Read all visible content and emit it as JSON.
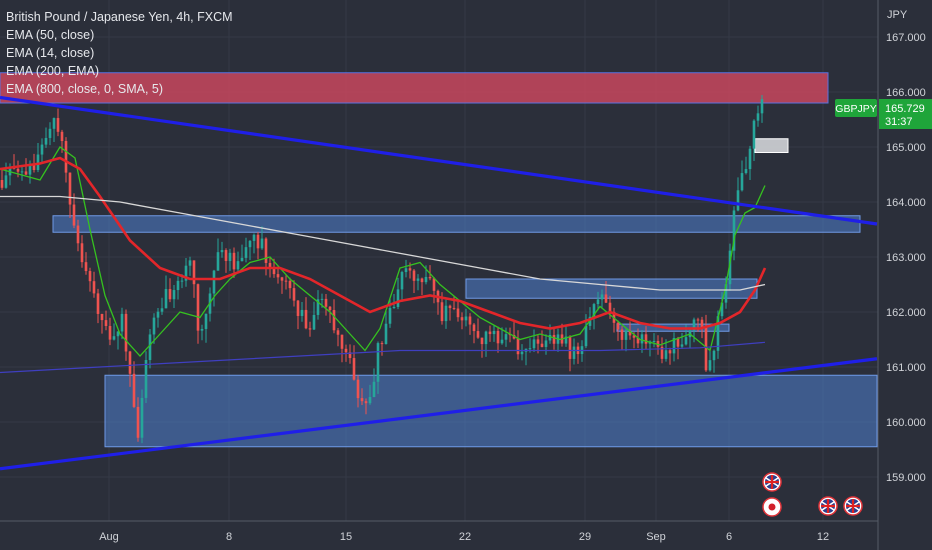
{
  "legend": {
    "title": "British Pound / Japanese Yen, 4h, FXCM",
    "indicators": [
      "EMA (50, close)",
      "EMA (14, close)",
      "EMA (200, EMA)",
      "EMA (800, close, 0, SMA, 5)"
    ]
  },
  "axis": {
    "currency": "JPY",
    "price_ticks": [
      "167.000",
      "166.000",
      "165.000",
      "164.000",
      "163.000",
      "162.000",
      "161.000",
      "160.000",
      "159.000"
    ],
    "date_ticks": [
      "Aug",
      "8",
      "15",
      "22",
      "29",
      "Sep",
      "6",
      "12"
    ]
  },
  "price_label": {
    "symbol": "GBPJPY",
    "price": "165.729",
    "countdown": "31:37"
  },
  "colors": {
    "background": "#2b2f3a",
    "up": "#26a69a",
    "down": "#ef5350",
    "ema14": "#35c21f",
    "ema50": "#e3262a",
    "ema200": "#d8d8d8",
    "ema800": "#3f3fc0",
    "trendline": "#1f1fe8",
    "zone": "#4f7fd0",
    "resistance": "#c8475e"
  },
  "chart_data": {
    "type": "candlestick",
    "symbol": "GBPJPY",
    "timeframe": "4h",
    "ylim": [
      158.6,
      167.3
    ],
    "series": [
      {
        "name": "EMA (14, close)",
        "points": [
          [
            0,
            164.6
          ],
          [
            40,
            164.4
          ],
          [
            60,
            165.0
          ],
          [
            75,
            164.8
          ],
          [
            90,
            163.5
          ],
          [
            105,
            162.3
          ],
          [
            120,
            161.6
          ],
          [
            140,
            161.2
          ],
          [
            160,
            161.6
          ],
          [
            180,
            162.0
          ],
          [
            200,
            161.9
          ],
          [
            215,
            162.3
          ],
          [
            230,
            162.6
          ],
          [
            250,
            162.9
          ],
          [
            270,
            163.0
          ],
          [
            290,
            162.6
          ],
          [
            310,
            162.3
          ],
          [
            330,
            162.0
          ],
          [
            350,
            161.6
          ],
          [
            365,
            161.3
          ],
          [
            380,
            161.7
          ],
          [
            400,
            162.8
          ],
          [
            420,
            162.9
          ],
          [
            440,
            162.5
          ],
          [
            460,
            162.2
          ],
          [
            480,
            161.9
          ],
          [
            500,
            161.7
          ],
          [
            520,
            161.5
          ],
          [
            540,
            161.6
          ],
          [
            560,
            161.5
          ],
          [
            580,
            161.6
          ],
          [
            600,
            162.1
          ],
          [
            620,
            161.8
          ],
          [
            640,
            161.5
          ],
          [
            660,
            161.4
          ],
          [
            690,
            161.6
          ],
          [
            710,
            161.3
          ],
          [
            725,
            162.4
          ],
          [
            735,
            163.4
          ],
          [
            745,
            163.8
          ],
          [
            755,
            163.9
          ],
          [
            765,
            164.3
          ]
        ]
      },
      {
        "name": "EMA (50, close)",
        "points": [
          [
            0,
            164.6
          ],
          [
            40,
            164.7
          ],
          [
            60,
            164.8
          ],
          [
            80,
            164.6
          ],
          [
            100,
            164.1
          ],
          [
            130,
            163.3
          ],
          [
            160,
            162.8
          ],
          [
            190,
            162.6
          ],
          [
            220,
            162.6
          ],
          [
            250,
            162.8
          ],
          [
            280,
            162.8
          ],
          [
            310,
            162.6
          ],
          [
            340,
            162.3
          ],
          [
            370,
            162.0
          ],
          [
            400,
            162.2
          ],
          [
            430,
            162.3
          ],
          [
            460,
            162.2
          ],
          [
            490,
            162.0
          ],
          [
            520,
            161.8
          ],
          [
            550,
            161.7
          ],
          [
            580,
            161.8
          ],
          [
            610,
            162.0
          ],
          [
            640,
            161.8
          ],
          [
            670,
            161.7
          ],
          [
            700,
            161.7
          ],
          [
            720,
            161.8
          ],
          [
            740,
            162.0
          ],
          [
            755,
            162.4
          ],
          [
            765,
            162.8
          ]
        ]
      },
      {
        "name": "EMA (200, EMA)",
        "points": [
          [
            0,
            164.1
          ],
          [
            60,
            164.1
          ],
          [
            120,
            164.0
          ],
          [
            180,
            163.8
          ],
          [
            240,
            163.6
          ],
          [
            300,
            163.4
          ],
          [
            360,
            163.2
          ],
          [
            420,
            163.0
          ],
          [
            480,
            162.8
          ],
          [
            540,
            162.6
          ],
          [
            600,
            162.5
          ],
          [
            660,
            162.4
          ],
          [
            700,
            162.4
          ],
          [
            740,
            162.4
          ],
          [
            765,
            162.5
          ]
        ]
      },
      {
        "name": "EMA (800, close, 0, SMA, 5)",
        "points": [
          [
            0,
            160.9
          ],
          [
            100,
            161.0
          ],
          [
            200,
            161.1
          ],
          [
            300,
            161.2
          ],
          [
            400,
            161.3
          ],
          [
            500,
            161.3
          ],
          [
            600,
            161.3
          ],
          [
            700,
            161.35
          ],
          [
            765,
            161.45
          ]
        ]
      }
    ],
    "trendlines": [
      {
        "from": [
          0,
          165.9
        ],
        "to": [
          877,
          163.6
        ]
      },
      {
        "from": [
          0,
          159.15
        ],
        "to": [
          877,
          161.15
        ]
      }
    ],
    "zones": [
      {
        "x0": 0,
        "x1": 828,
        "y0": 165.8,
        "y1": 166.35,
        "kind": "resistance"
      },
      {
        "x0": 53,
        "x1": 860,
        "y0": 163.45,
        "y1": 163.75,
        "kind": "zone"
      },
      {
        "x0": 466,
        "x1": 757,
        "y0": 162.25,
        "y1": 162.6,
        "kind": "zone"
      },
      {
        "x0": 617,
        "x1": 729,
        "y0": 161.65,
        "y1": 161.78,
        "kind": "zone"
      },
      {
        "x0": 105,
        "x1": 877,
        "y0": 159.55,
        "y1": 160.85,
        "kind": "zone"
      },
      {
        "x0": 755,
        "x1": 788,
        "y0": 164.9,
        "y1": 165.15,
        "kind": "grey-box"
      }
    ],
    "price_path": [
      [
        0,
        164.4
      ],
      [
        15,
        164.5
      ],
      [
        30,
        164.5
      ],
      [
        45,
        165.2
      ],
      [
        55,
        165.6
      ],
      [
        62,
        165.0
      ],
      [
        70,
        164.0
      ],
      [
        80,
        163.2
      ],
      [
        92,
        162.3
      ],
      [
        102,
        162.0
      ],
      [
        112,
        161.5
      ],
      [
        122,
        161.8
      ],
      [
        130,
        160.9
      ],
      [
        138,
        159.6
      ],
      [
        145,
        160.9
      ],
      [
        155,
        162.0
      ],
      [
        168,
        162.4
      ],
      [
        180,
        162.4
      ],
      [
        190,
        162.9
      ],
      [
        200,
        161.5
      ],
      [
        212,
        162.6
      ],
      [
        222,
        163.2
      ],
      [
        235,
        162.8
      ],
      [
        250,
        163.2
      ],
      [
        262,
        163.3
      ],
      [
        272,
        162.7
      ],
      [
        285,
        162.6
      ],
      [
        298,
        162.0
      ],
      [
        310,
        161.7
      ],
      [
        320,
        162.2
      ],
      [
        330,
        161.9
      ],
      [
        342,
        161.4
      ],
      [
        350,
        161.1
      ],
      [
        360,
        160.4
      ],
      [
        370,
        160.3
      ],
      [
        378,
        161.3
      ],
      [
        388,
        162.0
      ],
      [
        398,
        162.3
      ],
      [
        405,
        163.0
      ],
      [
        415,
        162.6
      ],
      [
        428,
        162.6
      ],
      [
        440,
        162.0
      ],
      [
        455,
        162.0
      ],
      [
        470,
        161.7
      ],
      [
        490,
        161.5
      ],
      [
        505,
        161.5
      ],
      [
        520,
        161.3
      ],
      [
        540,
        161.5
      ],
      [
        555,
        161.6
      ],
      [
        570,
        161.3
      ],
      [
        582,
        161.4
      ],
      [
        592,
        161.9
      ],
      [
        600,
        162.4
      ],
      [
        610,
        162.1
      ],
      [
        622,
        161.5
      ],
      [
        635,
        161.5
      ],
      [
        645,
        161.5
      ],
      [
        660,
        161.2
      ],
      [
        675,
        161.4
      ],
      [
        688,
        161.6
      ],
      [
        700,
        161.9
      ],
      [
        708,
        160.8
      ],
      [
        715,
        161.5
      ],
      [
        722,
        162.2
      ],
      [
        728,
        162.9
      ],
      [
        734,
        163.7
      ],
      [
        740,
        164.4
      ],
      [
        746,
        164.6
      ],
      [
        750,
        165.0
      ],
      [
        756,
        165.5
      ],
      [
        762,
        165.7
      ]
    ],
    "annotations": [
      "uk-flag-event",
      "uk-flag-event",
      "uk-flag-event",
      "red-dot-event"
    ]
  }
}
